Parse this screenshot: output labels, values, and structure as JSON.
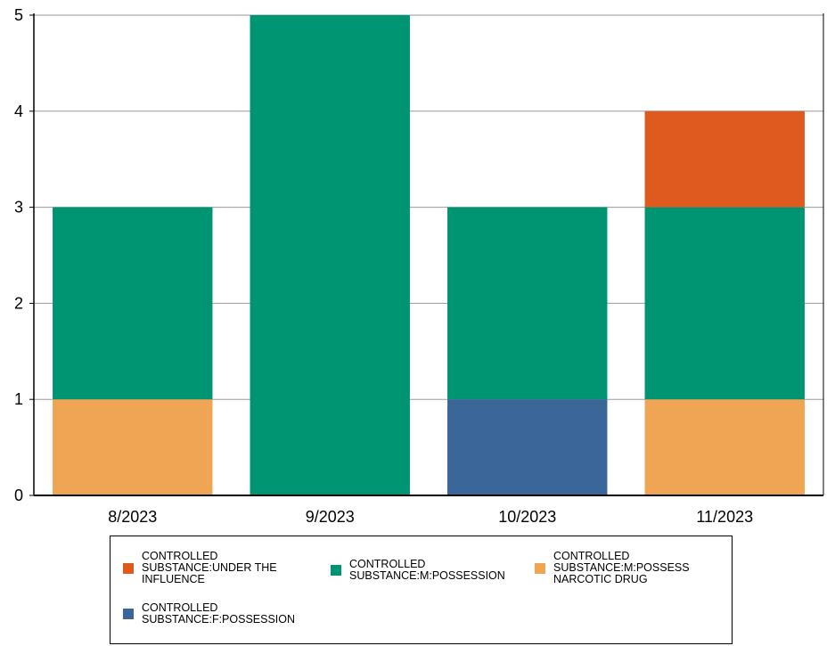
{
  "chart_data": {
    "type": "bar",
    "stacked": true,
    "categories": [
      "8/2023",
      "9/2023",
      "10/2023",
      "11/2023"
    ],
    "ylim": [
      0,
      5
    ],
    "yticks": [
      0,
      1,
      2,
      3,
      4,
      5
    ],
    "grid": true,
    "legend_position": "bottom",
    "series": [
      {
        "name": "CONTROLLED\nSUBSTANCE:M:POSSESS\nNARCOTIC DRUG",
        "color": "#F0A555",
        "values": [
          1,
          0,
          0,
          1
        ]
      },
      {
        "name": "CONTROLLED\nSUBSTANCE:F:POSSESSION",
        "color": "#3B6699",
        "values": [
          0,
          0,
          1,
          0
        ]
      },
      {
        "name": "CONTROLLED\nSUBSTANCE:M:POSSESSION",
        "color": "#009572",
        "values": [
          2,
          5,
          2,
          2
        ]
      },
      {
        "name": "CONTROLLED\nSUBSTANCE:UNDER THE\nINFLUENCE",
        "color": "#DE5A1F",
        "values": [
          0,
          0,
          0,
          1
        ]
      }
    ],
    "legend_order": [
      3,
      2,
      0,
      1
    ]
  }
}
